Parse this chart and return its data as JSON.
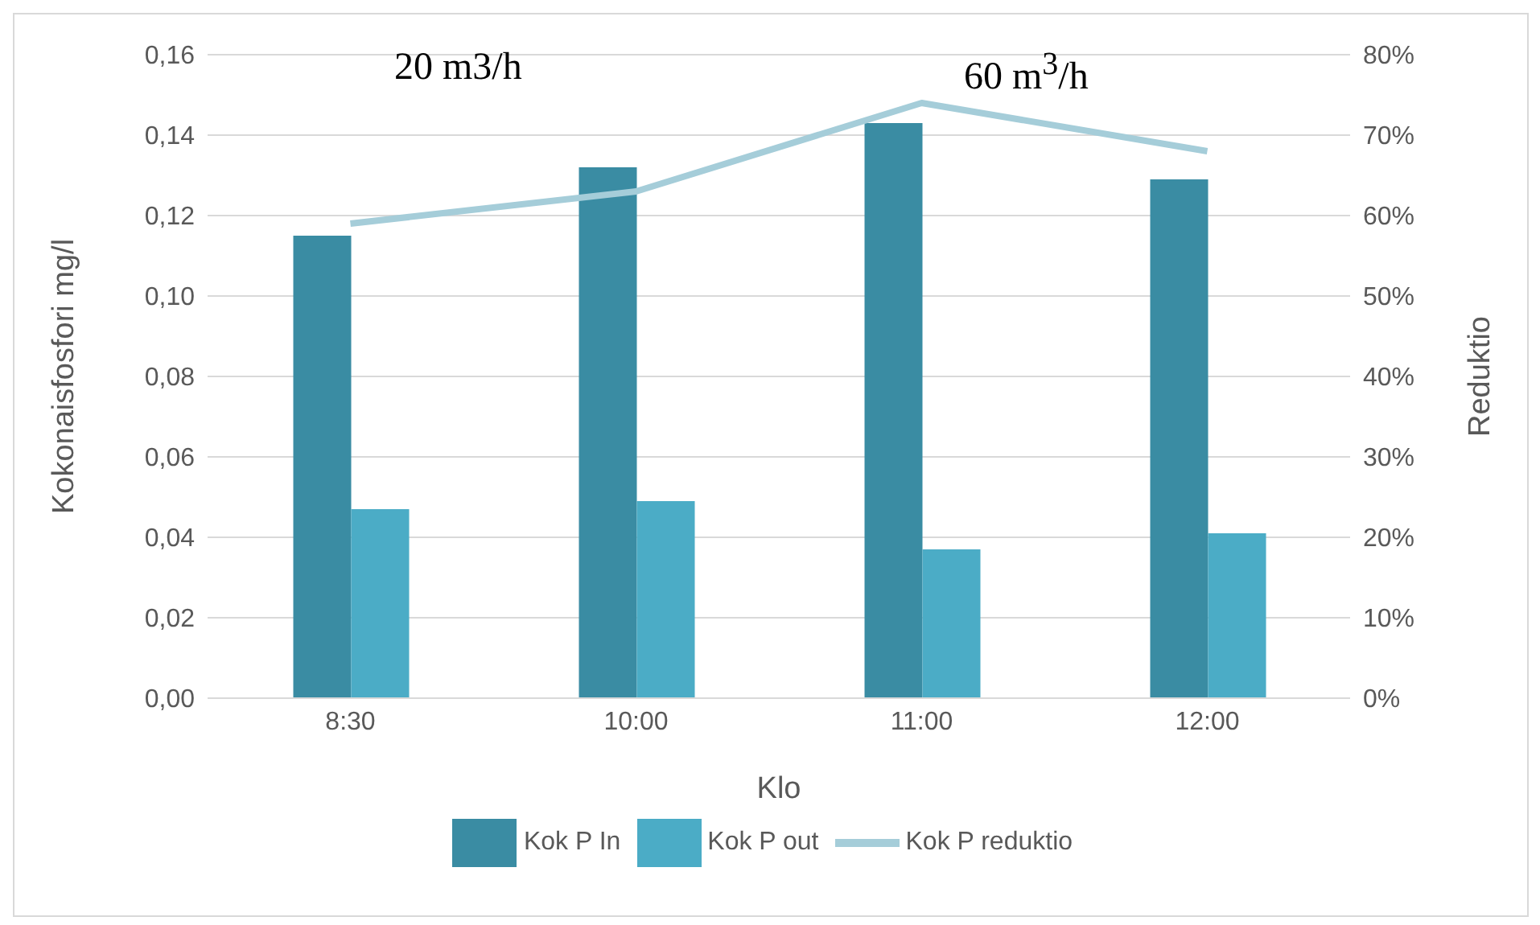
{
  "chart_data": {
    "type": "bar",
    "categories": [
      "8:30",
      "10:00",
      "11:00",
      "12:00"
    ],
    "xlabel": "Klo",
    "ylabel": "Kokonaisfosfori mg/l",
    "y2label": "Reduktio",
    "ylim": [
      0,
      0.16
    ],
    "yticks": [
      {
        "value": 0,
        "label": "0,00"
      },
      {
        "value": 0.02,
        "label": "0,02"
      },
      {
        "value": 0.04,
        "label": "0,04"
      },
      {
        "value": 0.06,
        "label": "0,06"
      },
      {
        "value": 0.08,
        "label": "0,08"
      },
      {
        "value": 0.1,
        "label": "0,10"
      },
      {
        "value": 0.12,
        "label": "0,12"
      },
      {
        "value": 0.14,
        "label": "0,14"
      },
      {
        "value": 0.16,
        "label": "0,16"
      }
    ],
    "y2lim": [
      0,
      80
    ],
    "y2ticks": [
      {
        "value": 0,
        "label": "0%"
      },
      {
        "value": 10,
        "label": "10%"
      },
      {
        "value": 20,
        "label": "20%"
      },
      {
        "value": 30,
        "label": "30%"
      },
      {
        "value": 40,
        "label": "40%"
      },
      {
        "value": 50,
        "label": "50%"
      },
      {
        "value": 60,
        "label": "60%"
      },
      {
        "value": 70,
        "label": "70%"
      },
      {
        "value": 80,
        "label": "80%"
      }
    ],
    "series": [
      {
        "name": "Kok P In",
        "color": "#3a8ca3",
        "values": [
          0.115,
          0.132,
          0.143,
          0.129
        ]
      },
      {
        "name": "Kok P out",
        "color": "#4bacc6",
        "values": [
          0.047,
          0.049,
          0.037,
          0.041
        ]
      },
      {
        "name": "Kok P reduktio",
        "type": "line",
        "axis": "y2",
        "color": "#a5cdd9",
        "values": [
          59,
          63,
          74,
          68
        ],
        "marker": "none"
      }
    ],
    "annotations": [
      "20 m3/h",
      "60 m$^{3}$/h"
    ],
    "grid": "y",
    "legend": "bottom"
  }
}
